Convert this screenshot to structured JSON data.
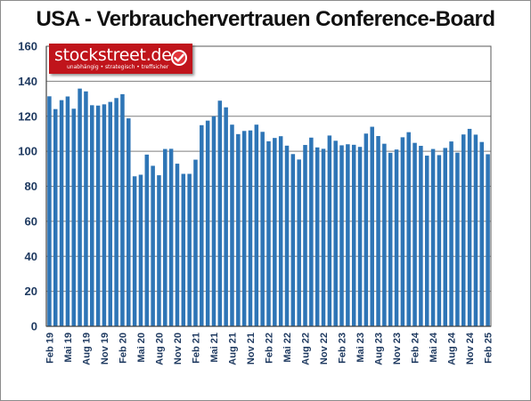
{
  "chart_data": {
    "type": "bar",
    "title": "USA - Verbrauchervertrauen Conference-Board",
    "xlabel": "",
    "ylabel": "",
    "ylim": [
      0,
      160
    ],
    "yticks": [
      0,
      20,
      40,
      60,
      80,
      100,
      120,
      140,
      160
    ],
    "grid": true,
    "bar_color": "#2e75b6",
    "categories": [
      "Feb 19",
      "Mar 19",
      "Apr 19",
      "Mai 19",
      "Jun 19",
      "Jul 19",
      "Aug 19",
      "Sep 19",
      "Okt 19",
      "Nov 19",
      "Dez 19",
      "Jan 20",
      "Feb 20",
      "Mar 20",
      "Apr 20",
      "Mai 20",
      "Jun 20",
      "Jul 20",
      "Aug 20",
      "Sep 20",
      "Okt 20",
      "Nov 20",
      "Dez 20",
      "Jan 21",
      "Feb 21",
      "Mar 21",
      "Apr 21",
      "Mai 21",
      "Jun 21",
      "Jul 21",
      "Aug 21",
      "Sep 21",
      "Okt 21",
      "Nov 21",
      "Dez 21",
      "Jan 22",
      "Feb 22",
      "Mar 22",
      "Apr 22",
      "Mai 22",
      "Jun 22",
      "Jul 22",
      "Aug 22",
      "Sep 22",
      "Okt 22",
      "Nov 22",
      "Dez 22",
      "Jan 23",
      "Feb 23",
      "Mar 23",
      "Apr 23",
      "Mai 23",
      "Jun 23",
      "Jul 23",
      "Aug 23",
      "Sep 23",
      "Okt 23",
      "Nov 23",
      "Dez 23",
      "Jan 24",
      "Feb 24",
      "Mar 24",
      "Apr 24",
      "Mai 24",
      "Jun 24",
      "Jul 24",
      "Aug 24",
      "Sep 24",
      "Okt 24",
      "Nov 24",
      "Dez 24",
      "Jan 25",
      "Feb 25"
    ],
    "tick_labels": [
      "Feb 19",
      "Mai 19",
      "Aug 19",
      "Nov 19",
      "Feb 20",
      "Mai 20",
      "Aug 20",
      "Nov 20",
      "Feb 21",
      "Mai 21",
      "Aug 21",
      "Nov 21",
      "Feb 22",
      "Mai 22",
      "Aug 22",
      "Nov 22",
      "Feb 23",
      "Mai 23",
      "Aug 23",
      "Nov 23",
      "Feb 24",
      "Mai 24",
      "Aug 24",
      "Nov 24",
      "Feb 25"
    ],
    "values": [
      131.4,
      124.1,
      129.2,
      131.3,
      124.3,
      135.8,
      134.2,
      126.3,
      126.1,
      126.8,
      128.2,
      130.4,
      132.6,
      118.8,
      85.7,
      86.6,
      98.1,
      91.7,
      86.3,
      101.3,
      101.4,
      92.9,
      87.1,
      87.1,
      95.2,
      114.9,
      117.5,
      120.0,
      128.9,
      125.1,
      115.2,
      109.8,
      111.6,
      111.9,
      115.2,
      111.1,
      105.7,
      107.6,
      108.6,
      103.2,
      98.4,
      95.3,
      103.6,
      107.8,
      102.2,
      101.4,
      109.0,
      106.0,
      103.4,
      104.0,
      103.7,
      102.5,
      110.1,
      114.0,
      108.7,
      104.3,
      99.1,
      101.0,
      108.0,
      110.9,
      104.8,
      103.1,
      97.5,
      101.3,
      97.8,
      101.9,
      105.6,
      99.2,
      109.6,
      112.8,
      109.5,
      105.3,
      98.3
    ]
  },
  "logo": {
    "name": "stockstreet.de",
    "tagline": "unabhängig • strategisch • treffsicher",
    "color": "#c0141b"
  }
}
